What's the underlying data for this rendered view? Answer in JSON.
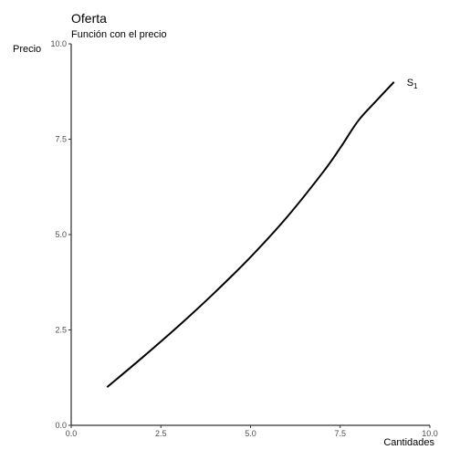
{
  "chart_data": {
    "type": "line",
    "title": "Oferta",
    "subtitle": "Función con el precio",
    "xlabel": "Cantidades",
    "ylabel": "Precio",
    "xlim": [
      0,
      10
    ],
    "ylim": [
      0,
      10
    ],
    "x_ticks": [
      "0.0",
      "2.5",
      "5.0",
      "7.5",
      "10.0"
    ],
    "y_ticks": [
      "0.0",
      "2.5",
      "5.0",
      "7.5",
      "10.0"
    ],
    "grid": false,
    "series": [
      {
        "label_main": "S",
        "label_sub": "1",
        "color": "#000000",
        "x": [
          1.0,
          2.0,
          3.0,
          4.0,
          5.0,
          6.0,
          7.0,
          7.5,
          8.0,
          8.5,
          9.0
        ],
        "y": [
          1.0,
          1.79,
          2.61,
          3.48,
          4.41,
          5.44,
          6.61,
          7.27,
          7.98,
          8.5,
          9.0
        ]
      }
    ]
  }
}
